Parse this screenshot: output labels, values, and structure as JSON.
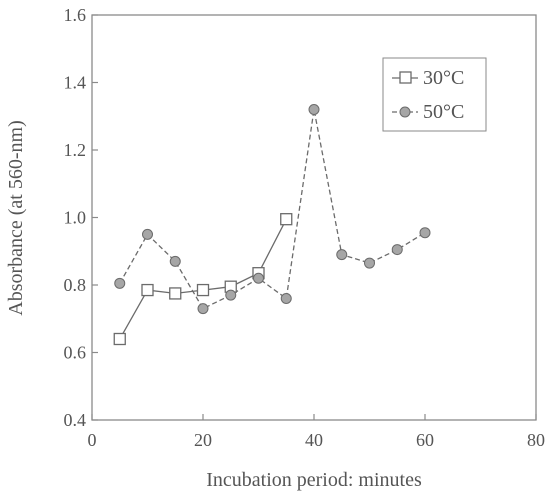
{
  "chart_data": {
    "type": "line",
    "xlabel": "Incubation period: minutes",
    "ylabel": "Absorbance (at 560-nm)",
    "xlim": [
      0,
      80
    ],
    "ylim": [
      0.4,
      1.6
    ],
    "xticks": [
      "0",
      "20",
      "40",
      "60",
      "80"
    ],
    "yticks": [
      "0.4",
      "0.6",
      "0.8",
      "1.0",
      "1.2",
      "1.4",
      "1.6"
    ],
    "grid": false,
    "legend_position": "top-right",
    "series": [
      {
        "name": "30°C",
        "marker": "square",
        "line_style": "solid",
        "color": "#6b6b6b",
        "x": [
          5,
          10,
          15,
          20,
          25,
          30,
          35
        ],
        "y": [
          0.64,
          0.785,
          0.775,
          0.785,
          0.795,
          0.835,
          0.995
        ]
      },
      {
        "name": "50°C",
        "marker": "circle",
        "line_style": "dashed",
        "color": "#6b6b6b",
        "marker_fill": "#a6a6a6",
        "x": [
          5,
          10,
          15,
          20,
          25,
          30,
          35,
          40,
          45,
          50,
          55,
          60
        ],
        "y": [
          0.805,
          0.95,
          0.87,
          0.73,
          0.77,
          0.82,
          0.76,
          1.32,
          0.89,
          0.865,
          0.905,
          0.955
        ]
      }
    ]
  }
}
